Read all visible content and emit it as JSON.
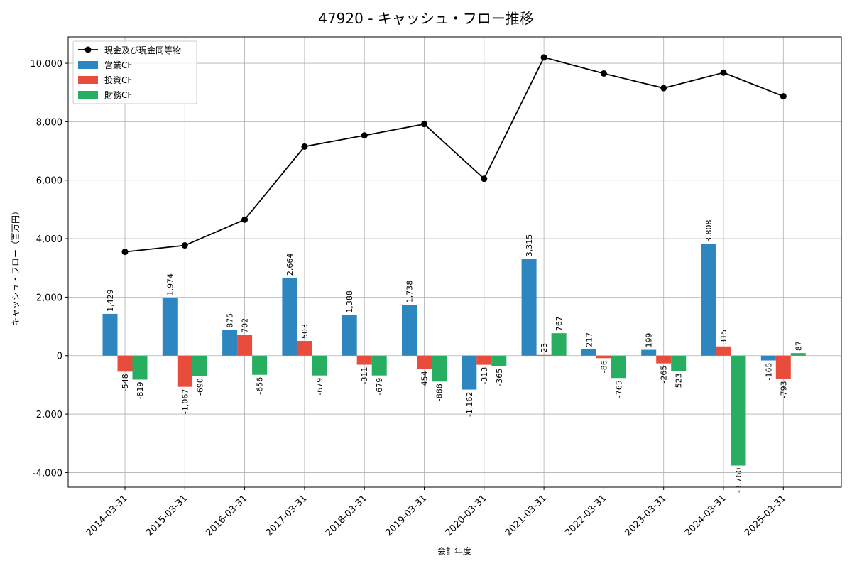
{
  "chart_data": {
    "type": "bar",
    "title": "47920 - キャッシュ・フロー推移",
    "xlabel": "会計年度",
    "ylabel": "キャッシュ・フロー（百万円）",
    "ylim": [
      -4500,
      10900
    ],
    "yticks": [
      -4000,
      -2000,
      0,
      2000,
      4000,
      6000,
      8000,
      10000
    ],
    "ytick_labels": [
      "-4,000",
      "-2,000",
      "0",
      "2,000",
      "4,000",
      "6,000",
      "8,000",
      "10,000"
    ],
    "grid": true,
    "legend_position": "top-left",
    "categories": [
      "2014-03-31",
      "2015-03-31",
      "2016-03-31",
      "2017-03-31",
      "2018-03-31",
      "2019-03-31",
      "2020-03-31",
      "2021-03-31",
      "2022-03-31",
      "2023-03-31",
      "2024-03-31",
      "2025-03-31"
    ],
    "line_series": {
      "name": "現金及び現金同等物",
      "color": "#000000",
      "values": [
        3550,
        3770,
        4650,
        7150,
        7530,
        7920,
        6050,
        10200,
        9650,
        9150,
        9680,
        8870
      ]
    },
    "series": [
      {
        "name": "営業CF",
        "color": "#2e86c1",
        "values": [
          1429,
          1974,
          875,
          2664,
          1388,
          1738,
          -1162,
          3315,
          217,
          199,
          3808,
          -165
        ],
        "labels": [
          "1,429",
          "1,974",
          "875",
          "2,664",
          "1,388",
          "1,738",
          "-1,162",
          "3,315",
          "217",
          "199",
          "3,808",
          "-165"
        ]
      },
      {
        "name": "投資CF",
        "color": "#e74c3c",
        "values": [
          -548,
          -1067,
          702,
          503,
          -311,
          -454,
          -313,
          23,
          -86,
          -265,
          315,
          -793
        ],
        "labels": [
          "-548",
          "-1,067",
          "702",
          "503",
          "-311",
          "-454",
          "-313",
          "23",
          "-86",
          "-265",
          "315",
          "-793"
        ]
      },
      {
        "name": "財務CF",
        "color": "#27ae60",
        "values": [
          -819,
          -690,
          -656,
          -679,
          -679,
          -888,
          -365,
          767,
          -765,
          -523,
          -3760,
          87
        ],
        "labels": [
          "-819",
          "-690",
          "-656",
          "-679",
          "-679",
          "-888",
          "-365",
          "767",
          "-765",
          "-523",
          "-3,760",
          "87"
        ]
      }
    ]
  }
}
